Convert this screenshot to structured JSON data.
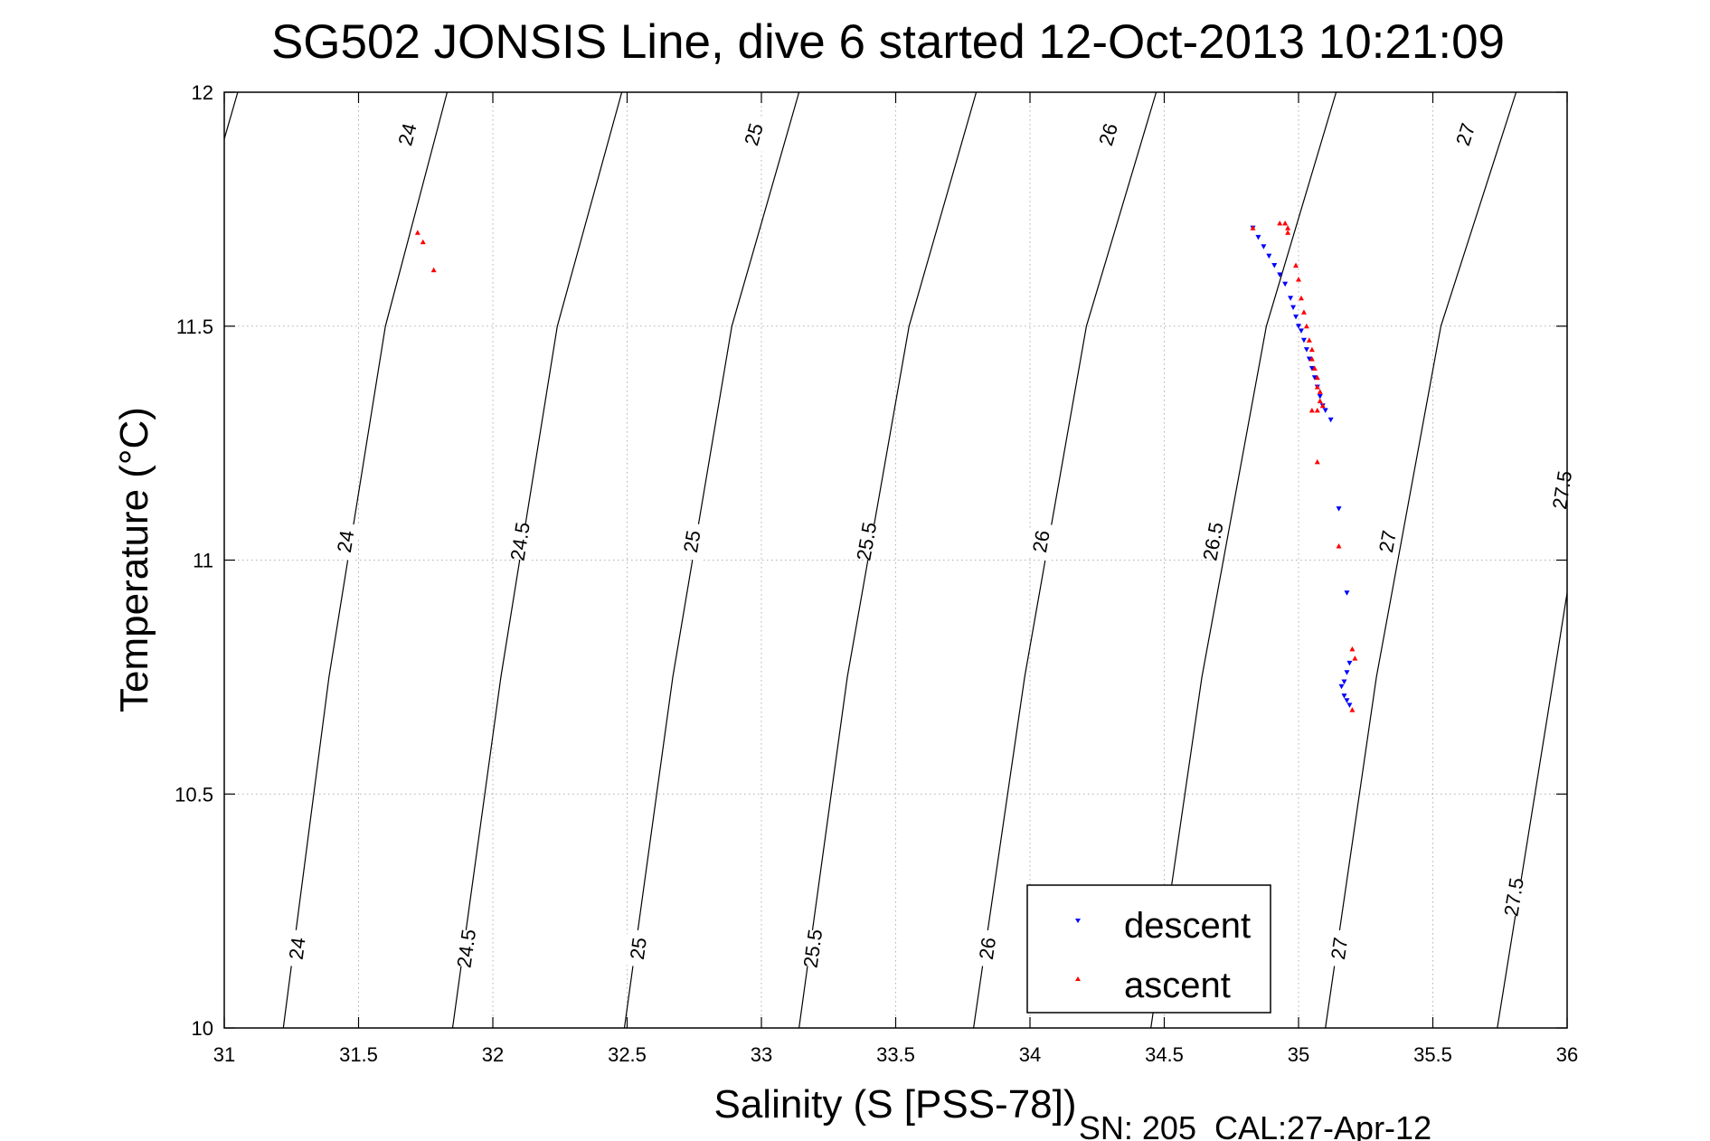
{
  "chart_data": {
    "type": "scatter",
    "title": "SG502 JONSIS Line, dive 6 started 12-Oct-2013 10:21:09",
    "xlabel": "Salinity (S [PSS-78])",
    "ylabel": "Temperature (°C)",
    "footer": "SN: 205  CAL:27-Apr-12",
    "xlim": [
      31,
      36
    ],
    "ylim": [
      10,
      12
    ],
    "grid": true,
    "x_ticks": [
      31,
      31.5,
      32,
      32.5,
      33,
      33.5,
      34,
      34.5,
      35,
      35.5,
      36
    ],
    "x_tick_labels": [
      "31",
      "31.5",
      "32",
      "32.5",
      "33",
      "33.5",
      "34",
      "34.5",
      "35",
      "35.5",
      "36"
    ],
    "y_ticks": [
      10,
      10.5,
      11,
      11.5,
      12
    ],
    "y_tick_labels": [
      "10",
      "10.5",
      "11",
      "11.5",
      "12"
    ],
    "legend_position": "bottom-right",
    "isopycnals": [
      {
        "label": "24",
        "points": [
          [
            31.22,
            10.0
          ],
          [
            31.39,
            10.75
          ],
          [
            31.6,
            11.5
          ],
          [
            31.83,
            12.0
          ]
        ],
        "label_positions": [
          [
            31.27,
            10.17
          ],
          [
            31.45,
            11.04
          ],
          [
            31.68,
            11.91
          ]
        ]
      },
      {
        "label": "24.5",
        "points": [
          [
            31.85,
            10.0
          ],
          [
            32.03,
            10.75
          ],
          [
            32.24,
            11.5
          ],
          [
            32.48,
            12.0
          ]
        ],
        "label_positions": [
          [
            31.9,
            10.17
          ],
          [
            32.1,
            11.04
          ]
        ]
      },
      {
        "label": "25",
        "points": [
          [
            32.49,
            10.0
          ],
          [
            32.67,
            10.75
          ],
          [
            32.89,
            11.5
          ],
          [
            33.14,
            12.0
          ]
        ],
        "label_positions": [
          [
            32.54,
            10.17
          ],
          [
            32.74,
            11.04
          ],
          [
            32.97,
            11.91
          ]
        ]
      },
      {
        "label": "25.5",
        "points": [
          [
            33.14,
            10.0
          ],
          [
            33.32,
            10.75
          ],
          [
            33.55,
            11.5
          ],
          [
            33.8,
            12.0
          ]
        ],
        "label_positions": [
          [
            33.19,
            10.17
          ],
          [
            33.39,
            11.04
          ]
        ]
      },
      {
        "label": "26",
        "points": [
          [
            33.79,
            10.0
          ],
          [
            33.98,
            10.75
          ],
          [
            34.21,
            11.5
          ],
          [
            34.47,
            12.0
          ]
        ],
        "label_positions": [
          [
            33.84,
            10.17
          ],
          [
            34.04,
            11.04
          ],
          [
            34.29,
            11.91
          ]
        ]
      },
      {
        "label": "26.5",
        "points": [
          [
            34.45,
            10.0
          ],
          [
            34.64,
            10.75
          ],
          [
            34.88,
            11.5
          ],
          [
            35.14,
            12.0
          ]
        ],
        "label_positions": [
          [
            34.68,
            11.04
          ]
        ]
      },
      {
        "label": "27",
        "points": [
          [
            35.1,
            10.0
          ],
          [
            35.29,
            10.75
          ],
          [
            35.53,
            11.5
          ],
          [
            35.81,
            12.0
          ]
        ],
        "label_positions": [
          [
            35.15,
            10.17
          ],
          [
            35.33,
            11.04
          ],
          [
            35.62,
            11.91
          ]
        ]
      },
      {
        "label": "27.5",
        "points": [
          [
            35.74,
            10.0
          ],
          [
            35.95,
            10.75
          ],
          [
            36.0,
            10.93
          ]
        ],
        "label_positions": [
          [
            35.8,
            10.28
          ],
          [
            35.98,
            11.15
          ]
        ]
      },
      {
        "label": "",
        "points": [
          [
            31.0,
            11.9
          ],
          [
            31.05,
            12.0
          ]
        ],
        "label_positions": []
      }
    ],
    "series": [
      {
        "name": "descent",
        "color": "#0000ff",
        "marker": "triangle-down",
        "points": [
          [
            34.83,
            11.71
          ],
          [
            34.85,
            11.69
          ],
          [
            34.87,
            11.67
          ],
          [
            34.89,
            11.65
          ],
          [
            34.91,
            11.63
          ],
          [
            34.93,
            11.61
          ],
          [
            34.95,
            11.59
          ],
          [
            34.97,
            11.56
          ],
          [
            34.98,
            11.54
          ],
          [
            34.99,
            11.52
          ],
          [
            35.0,
            11.5
          ],
          [
            35.01,
            11.49
          ],
          [
            35.02,
            11.47
          ],
          [
            35.03,
            11.45
          ],
          [
            35.04,
            11.43
          ],
          [
            35.05,
            11.41
          ],
          [
            35.06,
            11.39
          ],
          [
            35.07,
            11.37
          ],
          [
            35.08,
            11.35
          ],
          [
            35.09,
            11.33
          ],
          [
            35.1,
            11.32
          ],
          [
            35.12,
            11.3
          ],
          [
            35.15,
            11.11
          ],
          [
            35.18,
            10.93
          ],
          [
            35.19,
            10.78
          ],
          [
            35.18,
            10.76
          ],
          [
            35.17,
            10.74
          ],
          [
            35.16,
            10.73
          ],
          [
            35.17,
            10.71
          ],
          [
            35.18,
            10.7
          ],
          [
            35.19,
            10.69
          ]
        ]
      },
      {
        "name": "ascent",
        "color": "#ff0000",
        "marker": "triangle-up",
        "points": [
          [
            31.72,
            11.7
          ],
          [
            31.74,
            11.68
          ],
          [
            31.78,
            11.62
          ],
          [
            34.83,
            11.71
          ],
          [
            34.93,
            11.72
          ],
          [
            34.95,
            11.72
          ],
          [
            34.96,
            11.71
          ],
          [
            34.96,
            11.7
          ],
          [
            34.99,
            11.63
          ],
          [
            35.0,
            11.6
          ],
          [
            35.01,
            11.56
          ],
          [
            35.02,
            11.53
          ],
          [
            35.03,
            11.5
          ],
          [
            35.04,
            11.47
          ],
          [
            35.05,
            11.45
          ],
          [
            35.05,
            11.43
          ],
          [
            35.06,
            11.41
          ],
          [
            35.07,
            11.39
          ],
          [
            35.07,
            11.37
          ],
          [
            35.08,
            11.36
          ],
          [
            35.08,
            11.34
          ],
          [
            35.09,
            11.33
          ],
          [
            35.07,
            11.32
          ],
          [
            35.05,
            11.32
          ],
          [
            35.07,
            11.21
          ],
          [
            35.15,
            11.03
          ],
          [
            35.2,
            10.81
          ],
          [
            35.21,
            10.79
          ],
          [
            35.2,
            10.68
          ]
        ]
      }
    ]
  }
}
